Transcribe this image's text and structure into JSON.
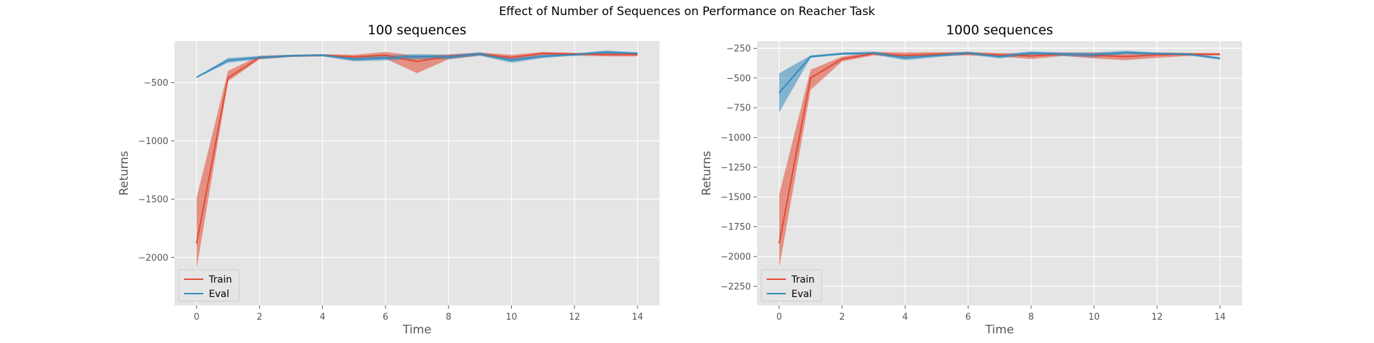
{
  "figure": {
    "suptitle": "Effect of Number of Sequences on Performance on Reacher Task"
  },
  "colors": {
    "train": "#E24A33",
    "eval": "#348ABD",
    "plot_bg": "#E5E5E5",
    "grid": "#FFFFFF",
    "tick_text": "#555555"
  },
  "chart_data": [
    {
      "type": "line",
      "title": "100 sequences",
      "xlabel": "Time",
      "ylabel": "Returns",
      "xlim": [
        -0.7,
        14.7
      ],
      "ylim": [
        -2410,
        -145
      ],
      "xticks": [
        0,
        2,
        4,
        6,
        8,
        10,
        12,
        14
      ],
      "yticks": [
        -2000,
        -1500,
        -1000,
        -500
      ],
      "grid": true,
      "legend_position": "lower left",
      "x": [
        0,
        1,
        2,
        3,
        4,
        5,
        6,
        7,
        8,
        9,
        10,
        11,
        12,
        13,
        14
      ],
      "series": [
        {
          "name": "Train",
          "color": "#E24A33",
          "values": [
            -1880,
            -460,
            -285,
            -270,
            -265,
            -280,
            -265,
            -320,
            -275,
            -255,
            -285,
            -250,
            -255,
            -260,
            -260
          ],
          "lower": [
            -2100,
            -490,
            -300,
            -280,
            -275,
            -300,
            -295,
            -420,
            -300,
            -270,
            -310,
            -265,
            -270,
            -275,
            -275
          ],
          "upper": [
            -1490,
            -400,
            -270,
            -262,
            -257,
            -262,
            -238,
            -270,
            -258,
            -243,
            -262,
            -238,
            -245,
            -248,
            -248
          ]
        },
        {
          "name": "Eval",
          "color": "#348ABD",
          "values": [
            -455,
            -310,
            -285,
            -270,
            -265,
            -300,
            -290,
            -275,
            -280,
            -255,
            -310,
            -275,
            -260,
            -240,
            -250
          ],
          "lower": [
            -460,
            -330,
            -300,
            -280,
            -275,
            -318,
            -310,
            -300,
            -300,
            -270,
            -330,
            -290,
            -270,
            -255,
            -262
          ],
          "upper": [
            -450,
            -290,
            -272,
            -262,
            -257,
            -285,
            -270,
            -255,
            -262,
            -240,
            -290,
            -260,
            -250,
            -225,
            -240
          ]
        }
      ]
    },
    {
      "type": "line",
      "title": "1000 sequences",
      "xlabel": "Time",
      "ylabel": "Returns",
      "xlim": [
        -0.7,
        14.7
      ],
      "ylim": [
        -2410,
        -190
      ],
      "xticks": [
        0,
        2,
        4,
        6,
        8,
        10,
        12,
        14
      ],
      "yticks": [
        -2250,
        -2000,
        -1750,
        -1500,
        -1250,
        -1000,
        -750,
        -500,
        -250
      ],
      "grid": true,
      "legend_position": "lower left",
      "x": [
        0,
        1,
        2,
        3,
        4,
        5,
        6,
        7,
        8,
        9,
        10,
        11,
        12,
        13,
        14
      ],
      "series": [
        {
          "name": "Train",
          "color": "#E24A33",
          "values": [
            -1890,
            -500,
            -340,
            -295,
            -310,
            -300,
            -295,
            -305,
            -315,
            -300,
            -310,
            -320,
            -305,
            -300,
            -300
          ],
          "lower": [
            -2100,
            -600,
            -360,
            -310,
            -330,
            -315,
            -310,
            -320,
            -340,
            -315,
            -335,
            -350,
            -330,
            -315,
            -310
          ],
          "upper": [
            -1480,
            -430,
            -320,
            -280,
            -285,
            -282,
            -280,
            -290,
            -290,
            -285,
            -285,
            -295,
            -285,
            -288,
            -290
          ]
        },
        {
          "name": "Eval",
          "color": "#348ABD",
          "values": [
            -625,
            -320,
            -295,
            -290,
            -330,
            -310,
            -290,
            -320,
            -290,
            -300,
            -305,
            -285,
            -295,
            -300,
            -335
          ],
          "lower": [
            -790,
            -330,
            -305,
            -302,
            -350,
            -325,
            -302,
            -335,
            -305,
            -315,
            -325,
            -300,
            -305,
            -310,
            -345
          ],
          "upper": [
            -460,
            -310,
            -285,
            -278,
            -310,
            -295,
            -278,
            -305,
            -275,
            -285,
            -285,
            -270,
            -285,
            -290,
            -325
          ]
        }
      ]
    }
  ]
}
